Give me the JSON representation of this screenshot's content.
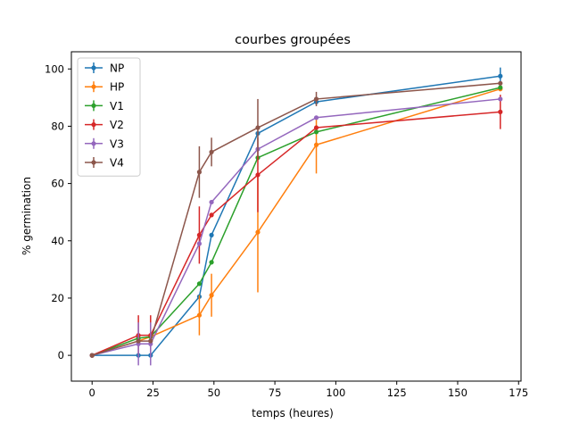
{
  "chart_data": {
    "type": "line",
    "title": "courbes groupées",
    "xlabel": "temps (heures)",
    "ylabel": "% germination",
    "xlim": [
      -8.5,
      176
    ],
    "ylim": [
      -9,
      106
    ],
    "xticks": [
      0,
      25,
      50,
      75,
      100,
      125,
      150,
      175
    ],
    "yticks": [
      0,
      20,
      40,
      60,
      80,
      100
    ],
    "grid": false,
    "legend_position": "top-left",
    "x": [
      0,
      19,
      24,
      44,
      49,
      68,
      92,
      167.5
    ],
    "series": [
      {
        "name": "NP",
        "color": "#1f77b4",
        "values": [
          0,
          0,
          0,
          20.5,
          42,
          77.5,
          88.5,
          97.5
        ],
        "errors": [
          0,
          0,
          0,
          0,
          0,
          0,
          0,
          3
        ]
      },
      {
        "name": "HP",
        "color": "#ff7f0e",
        "values": [
          0,
          5,
          6.5,
          14,
          21,
          43,
          73.5,
          93
        ],
        "errors": [
          0,
          0,
          0,
          7,
          7.5,
          21,
          10,
          0
        ]
      },
      {
        "name": "V1",
        "color": "#2ca02c",
        "values": [
          0,
          6,
          6.5,
          25,
          32.5,
          69,
          78,
          93.5
        ],
        "errors": [
          0,
          0,
          0,
          0,
          0,
          0,
          0,
          0
        ]
      },
      {
        "name": "V2",
        "color": "#d62728",
        "values": [
          0,
          7,
          7,
          42,
          49,
          63,
          79.5,
          85
        ],
        "errors": [
          0,
          7,
          7,
          10,
          0,
          13,
          0,
          6
        ]
      },
      {
        "name": "V3",
        "color": "#9467bd",
        "values": [
          0,
          4,
          4,
          39,
          53.5,
          72,
          83,
          89.5
        ],
        "errors": [
          0,
          7.5,
          7.5,
          0,
          0,
          0,
          0,
          0
        ]
      },
      {
        "name": "V4",
        "color": "#8c564b",
        "values": [
          0,
          5,
          5,
          64,
          71,
          79.5,
          89.5,
          95
        ],
        "errors": [
          0,
          0,
          0,
          9,
          5,
          10,
          2.5,
          0
        ]
      }
    ]
  }
}
